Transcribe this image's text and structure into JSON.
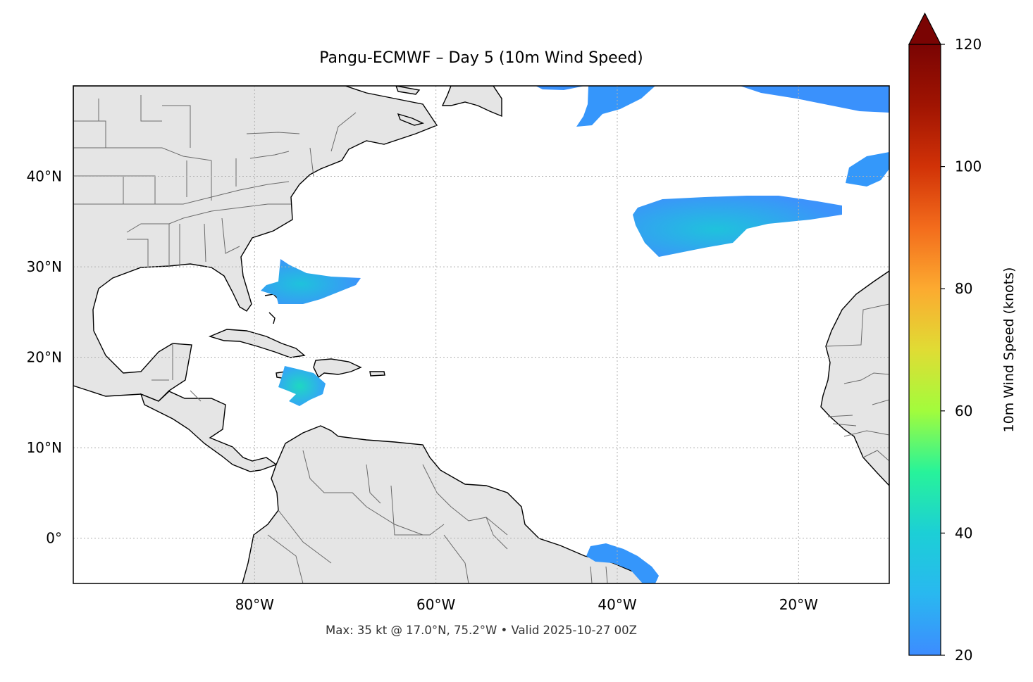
{
  "title": "Pangu-ECMWF – Day 5 (10m Wind Speed)",
  "footer": "Max: 35 kt @ 17.0°N, 75.2°W • Valid 2025-10-27 00Z",
  "chart_data": {
    "type": "heatmap",
    "title": "Pangu-ECMWF – Day 5 (10m Wind Speed)",
    "map_extent": {
      "lon": [
        -100,
        -10
      ],
      "lat": [
        -5,
        50
      ]
    },
    "x_ticks": [
      {
        "lon": -80,
        "label": "80°W"
      },
      {
        "lon": -60,
        "label": "60°W"
      },
      {
        "lon": -40,
        "label": "40°W"
      },
      {
        "lon": -20,
        "label": "20°W"
      }
    ],
    "y_ticks": [
      {
        "lat": 40,
        "label": "40°N"
      },
      {
        "lat": 30,
        "label": "30°N"
      },
      {
        "lat": 20,
        "label": "20°N"
      },
      {
        "lat": 10,
        "label": "10°N"
      },
      {
        "lat": 0,
        "label": "0°"
      }
    ],
    "grid": true,
    "colorbar": {
      "label": "10m Wind Speed (knots)",
      "range": [
        20,
        120
      ],
      "ticks": [
        20,
        40,
        60,
        80,
        100,
        120
      ],
      "extend": "max",
      "colors": [
        "#3d8cff",
        "#1ccfd6",
        "#27f39a",
        "#a2fc3c",
        "#e0dc34",
        "#fcaa30",
        "#f36c1c",
        "#d13207",
        "#a01402",
        "#7a0403"
      ]
    },
    "max": {
      "value_kt": 35,
      "lat": 17.0,
      "lon": -75.2,
      "valid": "2025-10-27 00Z"
    }
  }
}
